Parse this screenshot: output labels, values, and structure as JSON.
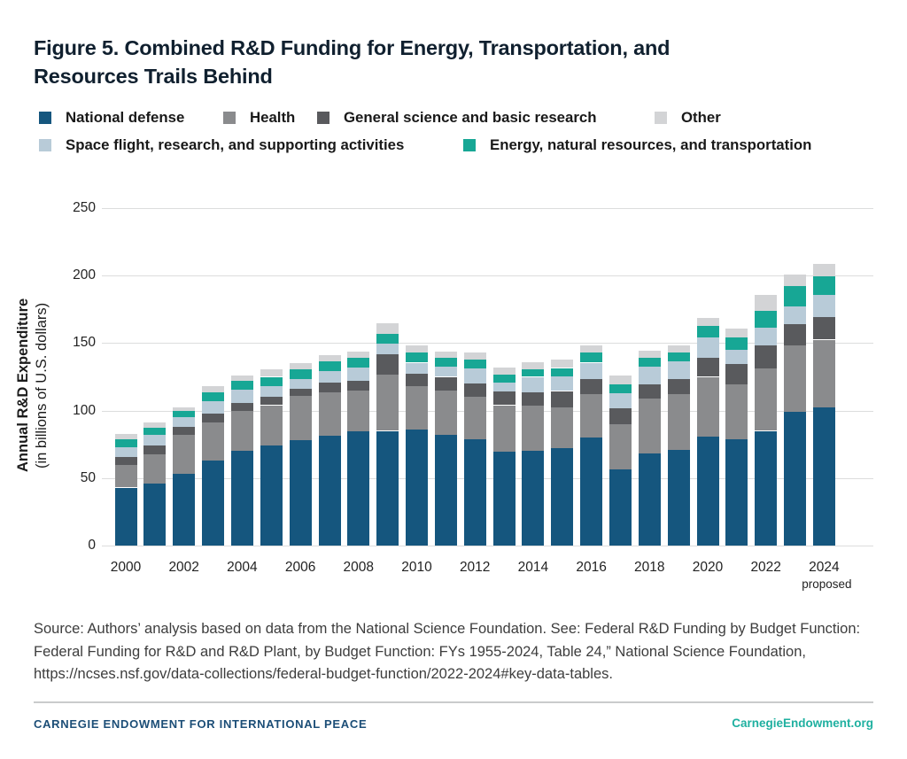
{
  "figure": {
    "title_line1": "Figure 5. Combined R&D Funding for Energy, Transportation, and",
    "title_line2": "Resources Trails Behind"
  },
  "colors": {
    "defense": "#15567E",
    "health": "#8A8B8D",
    "general_science": "#595A5D",
    "space": "#B8CBD8",
    "energy": "#17A795",
    "other": "#D3D4D6",
    "grid": "#DCDDDD",
    "footer_navy": "#1C4E77",
    "footer_teal": "#1FB0A0"
  },
  "legend": {
    "row1": [
      {
        "key": "defense",
        "label": "National defense",
        "x": 44
      },
      {
        "key": "health",
        "label": "Health",
        "x": 252
      },
      {
        "key": "general_science",
        "label": "General science and basic research",
        "x": 358
      },
      {
        "key": "other",
        "label": "Other",
        "x": 739
      }
    ],
    "row2": [
      {
        "key": "space",
        "label": "Space flight, research, and supporting activities",
        "x": 44
      },
      {
        "key": "energy",
        "label": "Energy, natural resources, and transportation",
        "x": 523
      }
    ]
  },
  "chart_data": {
    "type": "bar",
    "stacked": true,
    "title": "Figure 5. Combined R&D Funding for Energy, Transportation, and Resources Trails Behind",
    "ylabel_bold": "Annual R&D Expenditure",
    "ylabel_regular": "(in billions of U.S. dollars)",
    "ylim": [
      0,
      250
    ],
    "yticks": [
      0,
      50,
      100,
      150,
      200,
      250
    ],
    "grid": true,
    "legend_position": "top",
    "x": [
      2000,
      2001,
      2002,
      2003,
      2004,
      2005,
      2006,
      2007,
      2008,
      2009,
      2010,
      2011,
      2012,
      2013,
      2014,
      2015,
      2016,
      2017,
      2018,
      2019,
      2020,
      2021,
      2022,
      2023,
      2024
    ],
    "x_tick_years": [
      2000,
      2002,
      2004,
      2006,
      2008,
      2010,
      2012,
      2014,
      2016,
      2018,
      2020,
      2022,
      2024
    ],
    "x_note": "proposed",
    "x_note_year": 2024,
    "series": [
      {
        "key": "defense",
        "name": "National defense",
        "values": [
          43,
          46,
          53,
          63,
          70,
          74,
          78,
          81.5,
          84.5,
          85,
          86,
          82,
          79,
          69.5,
          70,
          72,
          80,
          56.5,
          68,
          71,
          81,
          78.5,
          85,
          99,
          102.5
        ]
      },
      {
        "key": "health",
        "name": "Health",
        "values": [
          17,
          21.5,
          29,
          28,
          30,
          30,
          33,
          32,
          30.5,
          41.5,
          32,
          33,
          31,
          34.5,
          33.5,
          30.5,
          32,
          33.5,
          41,
          41,
          44,
          41,
          46,
          49,
          50
        ]
      },
      {
        "key": "general_science",
        "name": "General science and basic research",
        "values": [
          5.5,
          6.5,
          6,
          7,
          5.5,
          6,
          5,
          7.5,
          7,
          15.5,
          9.5,
          10,
          10,
          10,
          10,
          12,
          11.5,
          12,
          10.5,
          11.5,
          14,
          15,
          17.5,
          16,
          16.5
        ]
      },
      {
        "key": "space",
        "name": "Space flight, research, and supporting activities",
        "values": [
          7.5,
          8,
          7,
          9,
          10,
          8,
          7.5,
          8,
          10,
          7.5,
          8,
          7.5,
          11.5,
          7,
          11.5,
          11,
          12,
          11,
          13,
          13,
          15,
          10.5,
          13,
          13,
          16.5
        ]
      },
      {
        "key": "energy",
        "name": "Energy, natural resources, and transportation",
        "values": [
          6,
          5,
          5,
          6.5,
          6.5,
          7,
          7,
          7.5,
          7,
          7.5,
          7.5,
          6.5,
          6.5,
          5.5,
          5.5,
          6,
          7.5,
          6.5,
          6.5,
          6.5,
          8.5,
          9,
          12.5,
          15,
          14
        ]
      },
      {
        "key": "other",
        "name": "Other",
        "values": [
          3.5,
          4,
          2.5,
          4.5,
          4,
          5.5,
          4.5,
          4.5,
          4.5,
          7.5,
          5.5,
          5,
          5,
          5.5,
          5.5,
          6,
          5.5,
          6.5,
          5.5,
          5.5,
          6,
          7,
          11.5,
          9,
          9.5
        ]
      }
    ]
  },
  "source": {
    "line1": "Source: Authors’ analysis based on data from the National Science Foundation. See: Federal R&D Funding by Budget Function:",
    "line2": "Federal Funding for R&D and R&D Plant, by Budget Function: FYs 1955-2024, Table 24,” National Science Foundation,",
    "line3": "https://ncses.nsf.gov/data-collections/federal-budget-function/2022-2024#key-data-tables."
  },
  "footer": {
    "left": "CARNEGIE ENDOWMENT FOR INTERNATIONAL PEACE",
    "right": "CarnegieEndowment.org"
  }
}
